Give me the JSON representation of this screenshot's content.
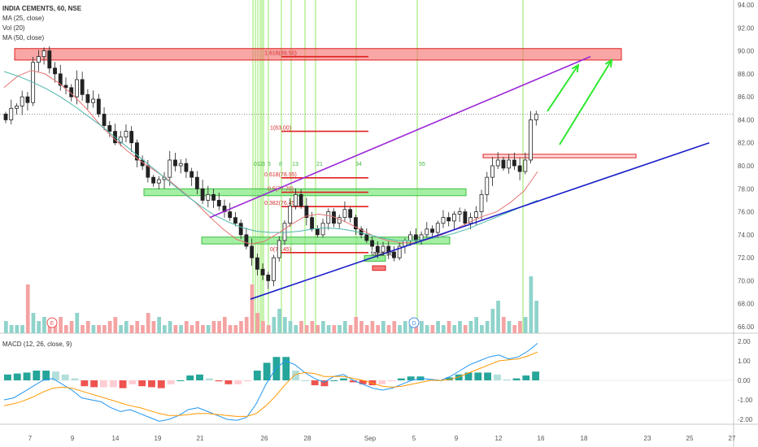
{
  "legend": {
    "title": "INDIA CEMENTS, 60, NSE",
    "ma25": "MA (25, close)",
    "vol": "Vol (20)",
    "ma50": "MA (50, close)",
    "macd": "MACD (12, 26, close, 9)"
  },
  "colors": {
    "up": "#26a69a",
    "down": "#ef5350",
    "ma25": "#e57373",
    "ma50": "#4db6ac",
    "macd": "#2196f3",
    "signal": "#ff9800",
    "vline": "#76e33a",
    "resist_box": "#f56b6b",
    "support_box": "#7ee87e",
    "purple": "#9b27d8",
    "blue": "#1a1ec8",
    "arrow": "#2ee82e"
  },
  "chart_data": [
    {
      "type": "candlestick",
      "ylim": [
        65.0,
        95.0
      ],
      "yticks": [
        "94.00",
        "92.00",
        "90.00",
        "88.00",
        "86.00",
        "84.00",
        "82.00",
        "80.00",
        "78.00",
        "76.00",
        "74.00",
        "72.00",
        "70.00",
        "68.00",
        "66.00"
      ],
      "xticks": [
        "7",
        "9",
        "14",
        "19",
        "21",
        "26",
        "28",
        "Sep",
        "5",
        "9",
        "12",
        "16",
        "18",
        "23",
        "25",
        "27"
      ],
      "last_price": 84.5,
      "fib_levels": [
        {
          "label": "1.618(89.50)",
          "value": 89.5
        },
        {
          "label": "1(83.00)",
          "value": 83.0
        },
        {
          "label": "0.618(78.95)",
          "value": 78.95
        },
        {
          "label": "0.5(77.70)",
          "value": 77.7
        },
        {
          "label": "0.382(76.45)",
          "value": 76.45
        },
        {
          "label": "0(72.45)",
          "value": 72.45
        }
      ],
      "count_labels": [
        "0",
        "1",
        "2",
        "3",
        "5",
        "8",
        "13",
        "21",
        "34",
        "55"
      ],
      "annotation": "false bo",
      "event_markers": [
        "E",
        "D"
      ],
      "close_series": [
        84.0,
        85.0,
        85.2,
        86.0,
        85.5,
        89.0,
        89.5,
        90.0,
        88.5,
        88.0,
        87.0,
        86.8,
        86.0,
        87.5,
        86.2,
        85.5,
        85.8,
        84.5,
        83.5,
        83.0,
        82.0,
        82.5,
        83.0,
        82.0,
        80.5,
        80.0,
        79.0,
        78.5,
        78.8,
        79.0,
        80.5,
        80.0,
        80.2,
        79.5,
        79.0,
        78.0,
        77.0,
        77.5,
        77.0,
        76.5,
        76.0,
        75.5,
        75.0,
        74.0,
        73.0,
        72.0,
        71.0,
        70.5,
        70.0,
        72.0,
        73.5,
        75.0,
        76.5,
        77.5,
        76.5,
        75.5,
        74.5,
        74.0,
        75.0,
        76.0,
        75.0,
        75.5,
        76.2,
        75.5,
        74.5,
        74.0,
        73.5,
        73.0,
        72.5,
        73.0,
        72.5,
        72.0,
        73.0,
        73.5,
        74.0,
        73.5,
        74.0,
        74.5,
        74.2,
        75.0,
        75.5,
        75.2,
        75.8,
        76.0,
        75.0,
        75.5,
        76.0,
        77.5,
        79.0,
        80.0,
        80.5,
        79.8,
        80.5,
        80.0,
        79.5,
        80.5,
        84.0,
        84.5
      ],
      "ma25_series": [
        86.8,
        87.8,
        88.3,
        88.0,
        87.2,
        86.2,
        85.0,
        83.6,
        82.4,
        81.3,
        80.4,
        79.6,
        78.8,
        77.8,
        76.8,
        75.6,
        74.5,
        73.6,
        73.2,
        73.4,
        74.1,
        74.9,
        75.6,
        75.8,
        75.6,
        75.1,
        74.5,
        73.9,
        73.5,
        73.3,
        73.3,
        73.6,
        74.0,
        74.5,
        75.1,
        75.6,
        76.0,
        76.8,
        77.8,
        79.5
      ],
      "ma50_series": [
        88.2,
        87.8,
        87.3,
        86.7,
        86.0,
        85.2,
        84.3,
        83.4,
        82.4,
        81.4,
        80.4,
        79.4,
        78.4,
        77.4,
        76.5,
        75.7,
        75.1,
        74.6,
        74.3,
        74.2,
        74.2,
        74.3,
        74.5,
        74.6,
        74.5,
        74.3,
        74.0,
        73.7,
        73.5,
        73.5,
        73.6,
        73.8,
        74.1,
        74.5,
        75.0,
        75.5,
        76.0,
        76.5,
        77.0
      ],
      "volume": [
        3,
        2,
        2,
        2,
        12,
        5,
        3,
        4,
        2,
        3,
        4,
        2,
        3,
        5,
        2,
        3,
        2,
        2,
        2,
        3,
        4,
        2,
        3,
        2,
        3,
        2,
        5,
        3,
        4,
        2,
        3,
        2,
        2,
        3,
        2,
        3,
        2,
        2,
        3,
        3,
        4,
        2,
        2,
        3,
        4,
        12,
        5,
        3,
        2,
        4,
        6,
        4,
        3,
        2,
        3,
        2,
        3,
        2,
        3,
        2,
        2,
        2,
        3,
        2,
        4,
        3,
        2,
        3,
        2,
        3,
        2,
        3,
        2,
        3,
        2,
        2,
        3,
        2,
        2,
        3,
        2,
        3,
        2,
        3,
        2,
        3,
        4,
        2,
        3,
        6,
        8,
        4,
        3,
        2,
        3,
        4,
        14,
        8
      ]
    },
    {
      "type": "macd",
      "ylim": [
        -2.6,
        2.6
      ],
      "yticks": [
        "2.00",
        "1.00",
        "0.00",
        "-1.00",
        "-2.00"
      ],
      "macd_series": [
        -1.0,
        -0.9,
        -0.6,
        -0.3,
        0.0,
        0.1,
        -0.2,
        -0.5,
        -0.9,
        -1.0,
        -1.1,
        -1.4,
        -1.6,
        -1.5,
        -1.7,
        -1.9,
        -2.1,
        -2.0,
        -1.8,
        -1.5,
        -1.4,
        -1.6,
        -1.8,
        -2.0,
        -2.05,
        -1.9,
        -1.2,
        -0.2,
        0.6,
        1.0,
        0.8,
        0.4,
        0.1,
        -0.1,
        0.2,
        0.3,
        0.0,
        -0.2,
        -0.4,
        -0.5,
        -0.4,
        -0.2,
        0.0,
        0.1,
        0.05,
        0.0,
        0.2,
        0.5,
        0.8,
        1.0,
        1.2,
        1.3,
        1.1,
        1.2,
        1.5,
        1.9
      ],
      "signal_series": [
        -1.3,
        -1.2,
        -1.05,
        -0.85,
        -0.6,
        -0.4,
        -0.35,
        -0.4,
        -0.55,
        -0.7,
        -0.85,
        -1.0,
        -1.15,
        -1.3,
        -1.4,
        -1.55,
        -1.7,
        -1.8,
        -1.8,
        -1.75,
        -1.7,
        -1.7,
        -1.75,
        -1.8,
        -1.85,
        -1.85,
        -1.7,
        -1.3,
        -0.8,
        -0.2,
        0.3,
        0.4,
        0.35,
        0.2,
        0.2,
        0.2,
        0.1,
        0.0,
        -0.15,
        -0.3,
        -0.35,
        -0.3,
        -0.2,
        -0.1,
        0.0,
        0.0,
        0.05,
        0.2,
        0.4,
        0.6,
        0.8,
        1.0,
        1.05,
        1.1,
        1.25,
        1.45
      ],
      "histogram": [
        0.3,
        0.35,
        0.4,
        0.5,
        0.5,
        0.45,
        0.3,
        0.1,
        -0.3,
        -0.35,
        -0.35,
        -0.35,
        -0.4,
        -0.2,
        -0.3,
        -0.35,
        -0.4,
        -0.2,
        0.0,
        0.25,
        0.3,
        0.1,
        -0.05,
        -0.2,
        -0.2,
        -0.05,
        0.5,
        0.9,
        1.2,
        1.2,
        0.5,
        0.0,
        -0.25,
        -0.3,
        0.0,
        0.1,
        -0.1,
        -0.2,
        -0.25,
        -0.2,
        -0.05,
        0.1,
        0.2,
        0.2,
        0.05,
        0.0,
        0.15,
        0.3,
        0.4,
        0.4,
        0.4,
        0.3,
        0.05,
        0.1,
        0.25,
        0.45
      ]
    }
  ]
}
